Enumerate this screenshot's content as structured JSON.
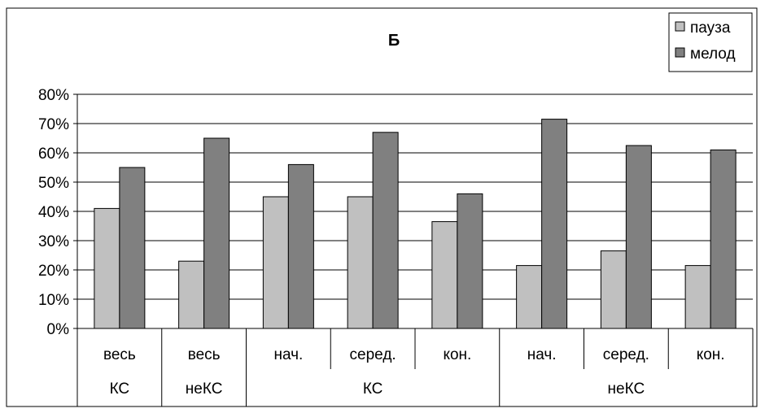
{
  "chart_data": {
    "type": "bar",
    "title": "Б",
    "categories": [
      "весь",
      "весь",
      "нач.",
      "серед.",
      "кон.",
      "нач.",
      "серед.",
      "кон."
    ],
    "groups": [
      {
        "label": "КС",
        "span": [
          0,
          0
        ]
      },
      {
        "label": "неКС",
        "span": [
          1,
          1
        ]
      },
      {
        "label": "КС",
        "span": [
          2,
          4
        ]
      },
      {
        "label": "неКС",
        "span": [
          5,
          7
        ]
      }
    ],
    "series": [
      {
        "name": "пауза",
        "color": "#c0c0c0",
        "values": [
          41,
          23,
          45,
          45,
          36.5,
          21.5,
          26.5,
          21.5
        ]
      },
      {
        "name": "мелод",
        "color": "#808080",
        "values": [
          55,
          65,
          56,
          67,
          46,
          71.5,
          62.5,
          61
        ]
      }
    ],
    "ylim": [
      0,
      80
    ],
    "yticks": [
      0,
      10,
      20,
      30,
      40,
      50,
      60,
      70,
      80
    ],
    "ytick_labels": [
      "0%",
      "10%",
      "20%",
      "30%",
      "40%",
      "50%",
      "60%",
      "70%",
      "80%"
    ],
    "grid": true,
    "legend_position": "top-right",
    "xlabel": "",
    "ylabel": ""
  }
}
